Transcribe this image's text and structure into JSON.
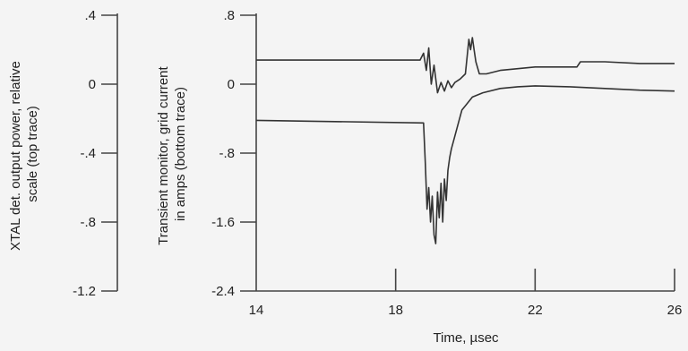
{
  "chart_data": {
    "type": "line",
    "left_axis": {
      "title_line1": "XTAL det. output power, relative",
      "title_line2": "scale (top trace)",
      "ticks": [
        ".4",
        "0",
        "-.4",
        "-.8",
        "-1.2"
      ],
      "tick_values": [
        0.4,
        0,
        -0.4,
        -0.8,
        -1.2
      ],
      "ylim": [
        -1.2,
        0.4
      ]
    },
    "right_axis": {
      "title_line1": "Transient monitor, grid current",
      "title_line2": "in amps (bottom trace)",
      "ticks": [
        ".8",
        "0",
        "-.8",
        "-1.6",
        "-2.4"
      ],
      "tick_values": [
        0.8,
        0,
        -0.8,
        -1.6,
        -2.4
      ],
      "ylim": [
        -2.4,
        0.8
      ]
    },
    "x_axis": {
      "title": "Time, µsec",
      "ticks": [
        "14",
        "18",
        "22",
        "26"
      ],
      "tick_values": [
        14,
        18,
        22,
        26
      ],
      "xlim": [
        14,
        26
      ]
    },
    "series": [
      {
        "axis": "left",
        "x": [
          14,
          18.7,
          18.8,
          18.88,
          18.95,
          19.02,
          19.1,
          19.2,
          19.3,
          19.4,
          19.5,
          19.6,
          19.7,
          19.85,
          20.0,
          20.1,
          20.15,
          20.2,
          20.25,
          20.3,
          20.4,
          20.6,
          21.0,
          21.5,
          22.0,
          22.5,
          23.2,
          23.3,
          24.0,
          25.0,
          26.0
        ],
        "y": [
          0.14,
          0.14,
          0.18,
          0.08,
          0.21,
          0.0,
          0.11,
          -0.05,
          0.01,
          -0.04,
          0.02,
          -0.02,
          0.01,
          0.03,
          0.06,
          0.26,
          0.2,
          0.27,
          0.2,
          0.13,
          0.06,
          0.06,
          0.08,
          0.09,
          0.1,
          0.1,
          0.1,
          0.13,
          0.13,
          0.12,
          0.12
        ]
      },
      {
        "axis": "right",
        "x": [
          14,
          18.8,
          18.85,
          18.9,
          18.95,
          19.0,
          19.05,
          19.1,
          19.15,
          19.2,
          19.25,
          19.3,
          19.35,
          19.4,
          19.45,
          19.5,
          19.55,
          19.6,
          19.7,
          19.8,
          19.9,
          20.0,
          20.2,
          20.5,
          21.0,
          21.5,
          22.0,
          23.0,
          24.0,
          25.0,
          26.0
        ],
        "y": [
          -0.42,
          -0.45,
          -0.9,
          -1.45,
          -1.2,
          -1.6,
          -1.3,
          -1.75,
          -1.85,
          -1.25,
          -1.55,
          -1.15,
          -1.6,
          -1.1,
          -1.35,
          -1.0,
          -0.85,
          -0.75,
          -0.6,
          -0.45,
          -0.3,
          -0.25,
          -0.15,
          -0.1,
          -0.05,
          -0.03,
          -0.02,
          -0.03,
          -0.05,
          -0.07,
          -0.08
        ]
      }
    ]
  }
}
